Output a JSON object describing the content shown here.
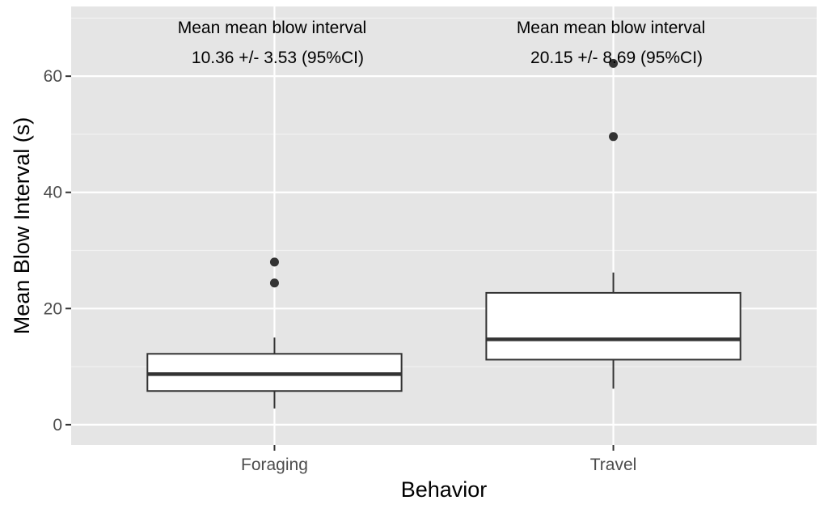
{
  "chart_data": {
    "type": "boxplot",
    "xlabel": "Behavior",
    "ylabel": "Mean Blow Interval (s)",
    "ylim": [
      -3.5,
      72
    ],
    "yticks": [
      0,
      20,
      40,
      60
    ],
    "grid": true,
    "categories": [
      "Foraging",
      "Travel"
    ],
    "boxes": [
      {
        "category": "Foraging",
        "whisker_low": 2.8,
        "q1": 5.8,
        "median": 8.7,
        "q3": 12.2,
        "whisker_high": 15.0,
        "outliers": [
          24.4,
          28.0
        ]
      },
      {
        "category": "Travel",
        "whisker_low": 6.2,
        "q1": 11.2,
        "median": 14.7,
        "q3": 22.7,
        "whisker_high": 26.2,
        "outliers": [
          49.6,
          62.2
        ]
      }
    ],
    "annotations": [
      {
        "category": "Foraging",
        "line1": "Mean mean blow interval",
        "line2": "10.36 +/- 3.53 (95%CI)"
      },
      {
        "category": "Travel",
        "line1": "Mean mean blow interval",
        "line2": "20.15 +/- 8.69 (95%CI)"
      }
    ]
  }
}
